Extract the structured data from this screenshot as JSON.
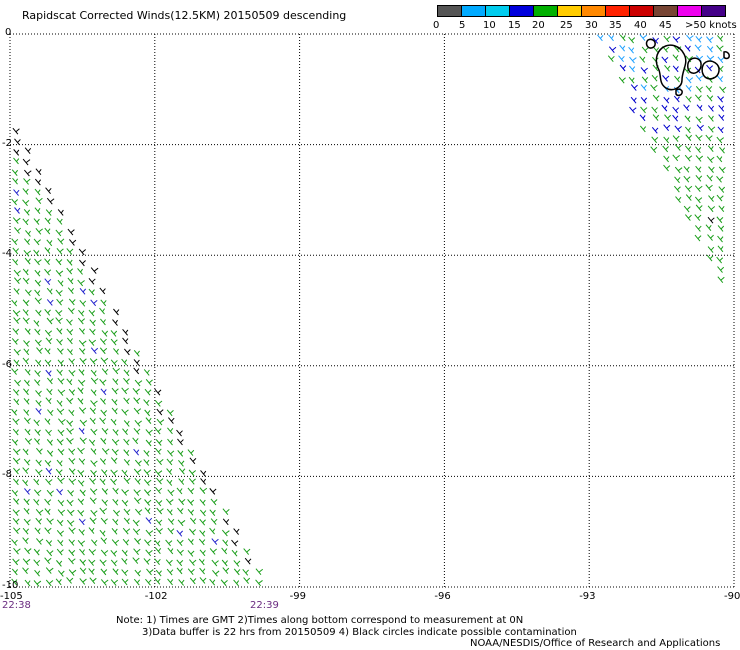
{
  "title": "Rapidscat Corrected Winds(12.5KM) 20150509 descending",
  "scale": {
    "colors": [
      "#555555",
      "#00aaff",
      "#00ccee",
      "#0000dd",
      "#00b000",
      "#ffcc00",
      "#ff8800",
      "#ff2200",
      "#cc0000",
      "#774433",
      "#ee00ee",
      "#440088"
    ],
    "labels": [
      "0",
      "5",
      "10",
      "15",
      "20",
      "25",
      "30",
      "35",
      "40",
      "45",
      ">50 knots"
    ]
  },
  "axes": {
    "lat_labels": [
      "0",
      "-2",
      "-4",
      "-6",
      "-8",
      "-10"
    ],
    "lon_labels": [
      "-105",
      "-102",
      "-99",
      "-96",
      "-93",
      "-90"
    ]
  },
  "times": {
    "left": "22:38",
    "middle": "22:39"
  },
  "notes": [
    "Note: 1) Times are GMT 2)Times along bottom correspond to measurement at 0N",
    "3)Data buffer is 22 hrs from 20150509 4) Black circles indicate possible contamination"
  ],
  "credit": "NOAA/NESDIS/Office of Research and Applications",
  "map_data": {
    "lon_range": [
      -105,
      -90
    ],
    "lat_range": [
      -10,
      0
    ],
    "swaths": [
      {
        "name": "west",
        "vertices": [
          [
            -105,
            -1.5
          ],
          [
            -99.6,
            -10
          ],
          [
            -105,
            -10
          ]
        ],
        "dominant_speed_knots": "15-20"
      },
      {
        "name": "east",
        "vertices": [
          [
            -92.9,
            0
          ],
          [
            -90,
            0
          ],
          [
            -90,
            -5.0
          ]
        ],
        "dominant_speed_knots": "15-20"
      }
    ]
  }
}
